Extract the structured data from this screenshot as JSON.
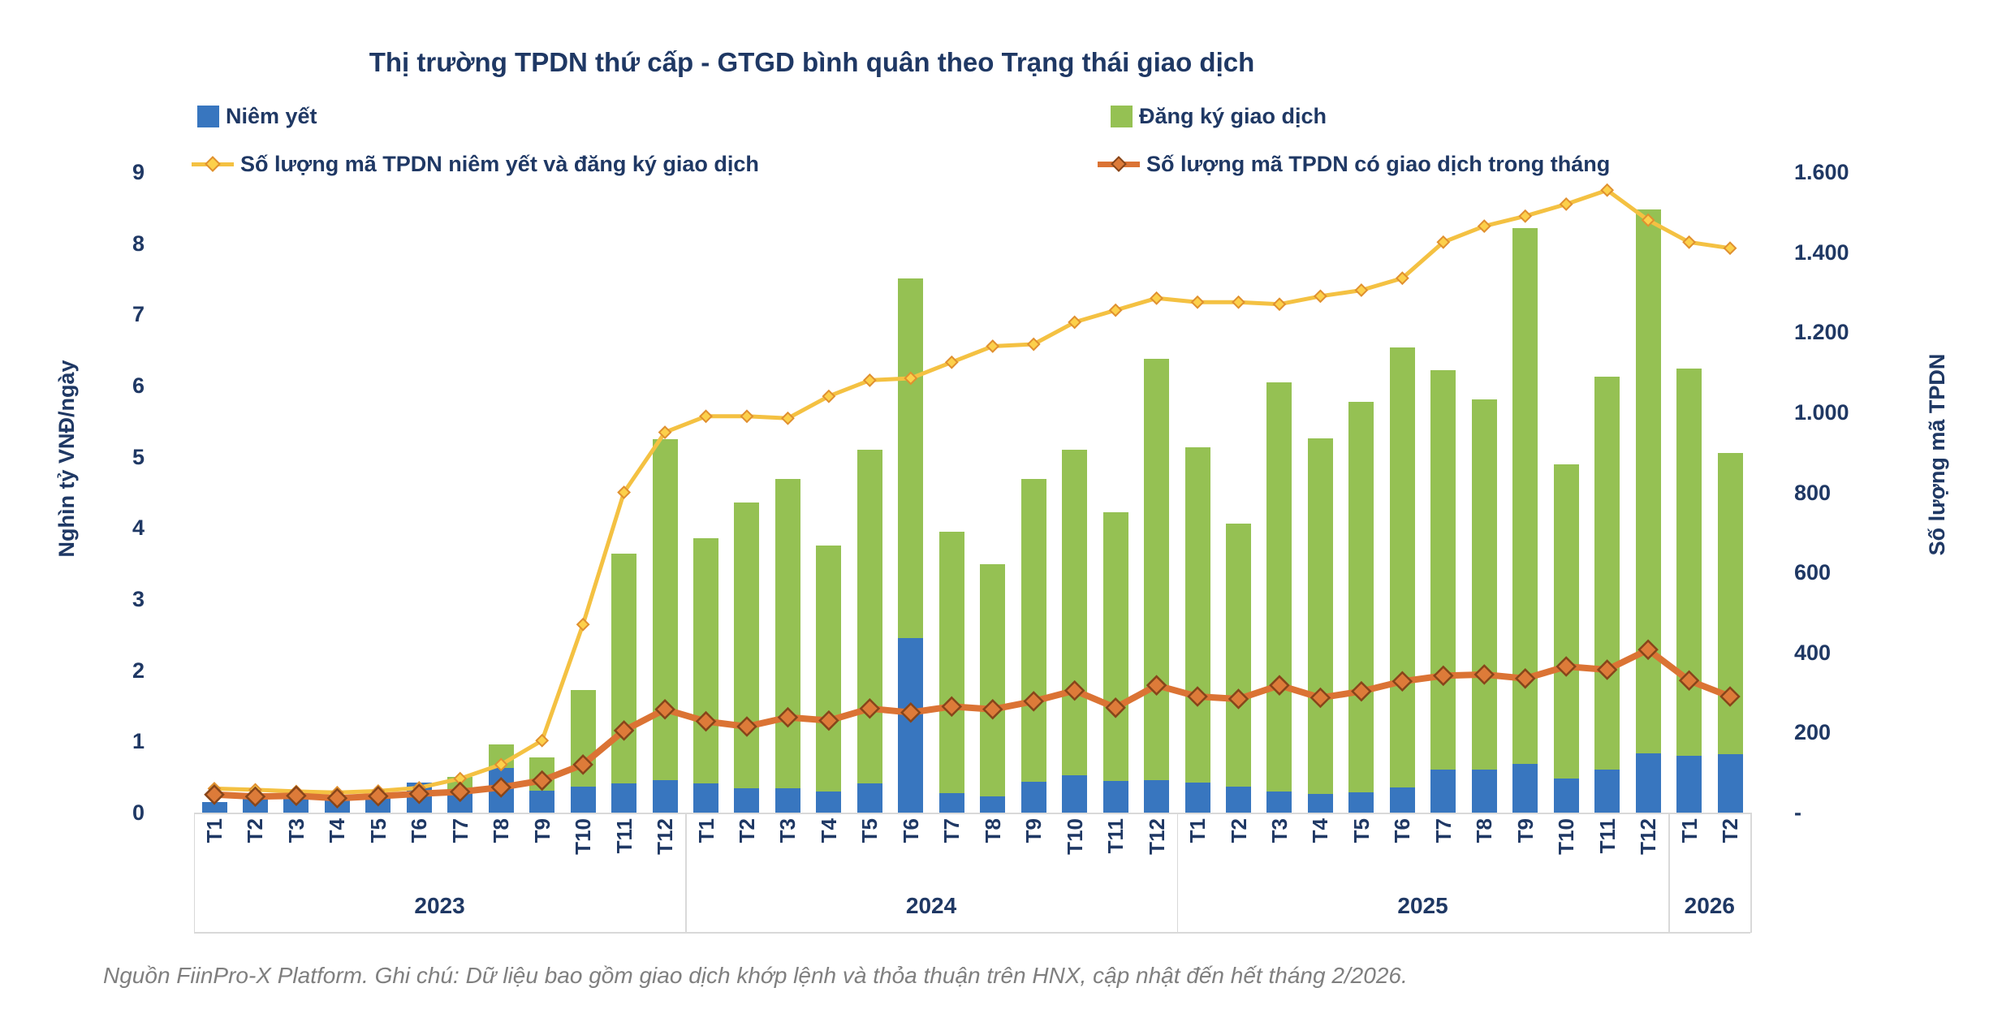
{
  "title": "Thị trường TPDN thứ cấp - GTGD bình quân theo Trạng thái giao dịch",
  "footer": "Nguồn FiinPro-X Platform. Ghi chú: Dữ liệu bao gồm giao dịch khớp lệnh và thỏa thuận trên HNX, cập nhật đến hết tháng 2/2026.",
  "colors": {
    "bar_blue": "#3876BF",
    "bar_green": "#95C153",
    "line_yellow": "#F4C142",
    "line_orange": "#DB7334",
    "diamond_yellow_fill": "#FCD04B",
    "diamond_yellow_stroke": "#E0902F",
    "diamond_orange_fill": "#DD7B39",
    "diamond_orange_stroke": "#87451A",
    "text_navy": "#1F3864",
    "grid_grey": "#D9D9D9",
    "footer_grey": "#7F7F7F"
  },
  "chart_data": {
    "type": "combo bar+line, dual axis",
    "title": "Thị trường TPDN thứ cấp - GTGD bình quân theo Trạng thái giao dịch",
    "x_months": [
      "T1",
      "T2",
      "T3",
      "T4",
      "T5",
      "T6",
      "T7",
      "T8",
      "T9",
      "T10",
      "T11",
      "T12",
      "T1",
      "T2",
      "T3",
      "T4",
      "T5",
      "T6",
      "T7",
      "T8",
      "T9",
      "T10",
      "T11",
      "T12",
      "T1",
      "T2",
      "T3",
      "T4",
      "T5",
      "T6",
      "T7",
      "T8",
      "T9",
      "T10",
      "T11",
      "T12",
      "T1",
      "T2"
    ],
    "year_groups": [
      {
        "label": "2023",
        "months": 12
      },
      {
        "label": "2024",
        "months": 12
      },
      {
        "label": "2025",
        "months": 12
      },
      {
        "label": "2026",
        "months": 2
      }
    ],
    "left_axis": {
      "title": "Nghìn tỷ VNĐ/ngày",
      "min": 0,
      "max": 9,
      "ticks": [
        "0",
        "1",
        "2",
        "3",
        "4",
        "5",
        "6",
        "7",
        "8",
        "9"
      ]
    },
    "right_axis": {
      "title": "Số lượng mã TPDN",
      "min": 0,
      "max": 1600,
      "ticks": [
        {
          "value": 0,
          "label": "-"
        },
        {
          "value": 200,
          "label": "200"
        },
        {
          "value": 400,
          "label": "400"
        },
        {
          "value": 600,
          "label": "600"
        },
        {
          "value": 800,
          "label": "800"
        },
        {
          "value": 1000,
          "label": "1.000"
        },
        {
          "value": 1200,
          "label": "1.200"
        },
        {
          "value": 1400,
          "label": "1.400"
        },
        {
          "value": 1600,
          "label": "1.600"
        }
      ]
    },
    "bar_series": [
      {
        "name": "Niêm yết",
        "axis": "left",
        "stack_order": 1,
        "values": [
          0.15,
          0.19,
          0.19,
          0.21,
          0.24,
          0.42,
          0.31,
          0.63,
          0.31,
          0.36,
          0.41,
          0.46,
          0.41,
          0.34,
          0.34,
          0.3,
          0.41,
          2.45,
          0.27,
          0.23,
          0.43,
          0.53,
          0.45,
          0.46,
          0.42,
          0.36,
          0.3,
          0.26,
          0.29,
          0.35,
          0.6,
          0.6,
          0.68,
          0.48,
          0.6,
          0.83,
          0.8,
          0.82
        ]
      },
      {
        "name": "Đăng ký giao dịch",
        "axis": "left",
        "stack_order": 2,
        "values": [
          0,
          0,
          0,
          0,
          0,
          0,
          0.19,
          0.33,
          0.47,
          1.36,
          3.23,
          4.79,
          3.44,
          4.02,
          4.35,
          3.45,
          4.69,
          5.05,
          3.68,
          3.26,
          4.26,
          4.57,
          3.77,
          5.92,
          4.71,
          3.7,
          5.75,
          5.0,
          5.48,
          6.19,
          5.62,
          5.21,
          7.53,
          4.41,
          5.53,
          7.65,
          5.44,
          4.23
        ]
      }
    ],
    "line_series": [
      {
        "name": "Số lượng mã TPDN niêm yết và đăng ký giao dịch",
        "axis": "right",
        "marker": "diamond-small",
        "values": [
          60,
          57,
          53,
          50,
          54,
          62,
          85,
          120,
          180,
          470,
          800,
          950,
          990,
          990,
          985,
          1040,
          1080,
          1085,
          1125,
          1165,
          1170,
          1225,
          1255,
          1285,
          1275,
          1275,
          1270,
          1290,
          1305,
          1335,
          1425,
          1465,
          1490,
          1520,
          1555,
          1480,
          1425,
          1410
        ]
      },
      {
        "name": "Số lượng mã TPDN có giao dịch trong tháng",
        "axis": "right",
        "marker": "diamond-large",
        "values": [
          45,
          40,
          42,
          36,
          41,
          47,
          52,
          63,
          80,
          120,
          205,
          258,
          228,
          215,
          238,
          230,
          260,
          250,
          265,
          258,
          278,
          305,
          262,
          318,
          290,
          284,
          318,
          287,
          303,
          328,
          342,
          345,
          335,
          365,
          357,
          407,
          330,
          290
        ]
      }
    ],
    "grid": "none",
    "legend_position": "top, two rows"
  }
}
